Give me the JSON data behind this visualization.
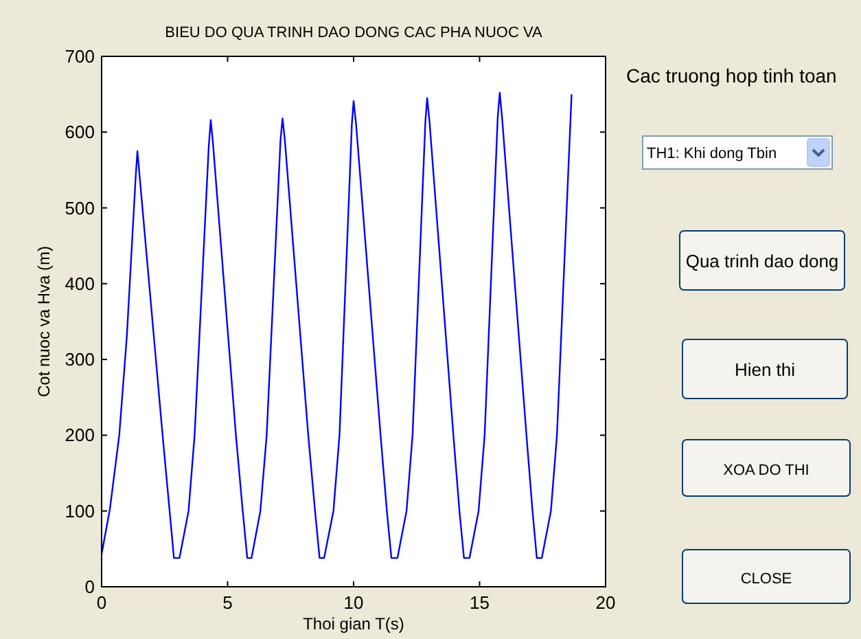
{
  "chart_data": [
    {
      "type": "line",
      "title": "BIEU DO QUA TRINH DAO DONG CAC PHA NUOC VA",
      "xlabel": "Thoi gian T(s)",
      "ylabel": "Cot nuoc va Hva (m)",
      "xlim": [
        0,
        20
      ],
      "xticks": [
        0,
        5,
        10,
        15,
        20
      ],
      "ylim": [
        0,
        700
      ],
      "yticks": [
        0,
        100,
        200,
        300,
        400,
        500,
        600,
        700
      ],
      "grid": false,
      "marker": "none",
      "line_style": "solid",
      "series": [
        {
          "color": "#0000ff",
          "x": [
            0,
            0.33,
            0.7,
            1.0,
            1.35,
            1.42,
            1.5,
            2.42,
            2.69,
            2.87,
            3.09,
            3.45,
            3.69,
            4.25,
            4.33,
            4.42,
            5.33,
            5.6,
            5.78,
            5.95,
            6.3,
            6.55,
            7.1,
            7.18,
            7.27,
            8.2,
            8.47,
            8.65,
            8.83,
            9.2,
            9.44,
            9.93,
            10.0,
            10.1,
            11.07,
            11.32,
            11.5,
            11.74,
            12.1,
            12.34,
            12.85,
            12.92,
            13.01,
            13.96,
            14.2,
            14.38,
            14.6,
            14.96,
            15.2,
            15.72,
            15.8,
            15.89,
            16.86,
            17.1,
            17.27,
            17.47,
            17.83,
            18.07,
            18.65
          ],
          "values": [
            43,
            103,
            200,
            330,
            540,
            575,
            545,
            200,
            103,
            38,
            38,
            100,
            200,
            580,
            616,
            585,
            200,
            100,
            38,
            38,
            100,
            200,
            590,
            618,
            590,
            200,
            100,
            38,
            38,
            100,
            200,
            610,
            641,
            610,
            200,
            100,
            38,
            38,
            100,
            200,
            615,
            645,
            615,
            200,
            100,
            38,
            38,
            100,
            200,
            620,
            652,
            620,
            200,
            100,
            38,
            38,
            100,
            200,
            649
          ]
        }
      ]
    },
    {
      "type": "other",
      "title": "Cac truong hop tinh toan",
      "annotations": [
        "TH1: Khi dong Tbin",
        "Qua trinh dao dong",
        "Hien thi",
        "XOA DO THI",
        "CLOSE"
      ]
    }
  ]
}
